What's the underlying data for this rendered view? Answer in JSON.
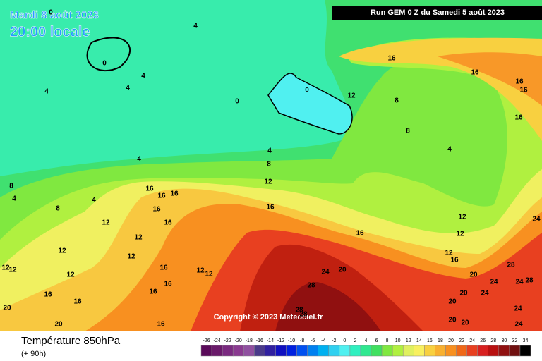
{
  "header": {
    "date": "Mardi 8 août 2023",
    "time": "20:00 locale",
    "run": "Run GEM 0 Z du Samedi 5 août 2023"
  },
  "copyright": "Copyright © 2023 Meteociel.fr",
  "legend": {
    "title": "Température 850hPa",
    "subtitle": "(+ 90h)",
    "values": [
      -26,
      -24,
      -22,
      -20,
      -18,
      -16,
      -14,
      -12,
      -10,
      -8,
      -6,
      -4,
      -2,
      0,
      2,
      4,
      6,
      8,
      10,
      12,
      14,
      16,
      18,
      20,
      22,
      24,
      26,
      28,
      30,
      32,
      34
    ],
    "colors": [
      "#5a0a5a",
      "#6a1a6a",
      "#7a2a80",
      "#8a3a90",
      "#9050a0",
      "#4a3a8a",
      "#3020a0",
      "#1010c0",
      "#0020e0",
      "#0050f0",
      "#0080f0",
      "#00b0f0",
      "#30d0f0",
      "#50f0f0",
      "#30f0c0",
      "#30e890",
      "#40e060",
      "#80e840",
      "#b0f040",
      "#e0f060",
      "#f8f060",
      "#f8d040",
      "#f8b030",
      "#f89020",
      "#f06818",
      "#e84020",
      "#d82020",
      "#b81010",
      "#901010",
      "#701010",
      "#000000"
    ]
  },
  "contour_labels": [
    0,
    4,
    0,
    4,
    4,
    4,
    0,
    0,
    12,
    16,
    16,
    16,
    16,
    8,
    8,
    4,
    16,
    4,
    4,
    8,
    12,
    8,
    4,
    4,
    16,
    16,
    16,
    16,
    12,
    8,
    16,
    16,
    12,
    16,
    12,
    12,
    12,
    12,
    12,
    12,
    12,
    16,
    12,
    12,
    12,
    16,
    20,
    28,
    24,
    20,
    28,
    24,
    24,
    24,
    28,
    16,
    16,
    16,
    16,
    20,
    24,
    20,
    28,
    28,
    20,
    20,
    20,
    24,
    24,
    20,
    16
  ]
}
